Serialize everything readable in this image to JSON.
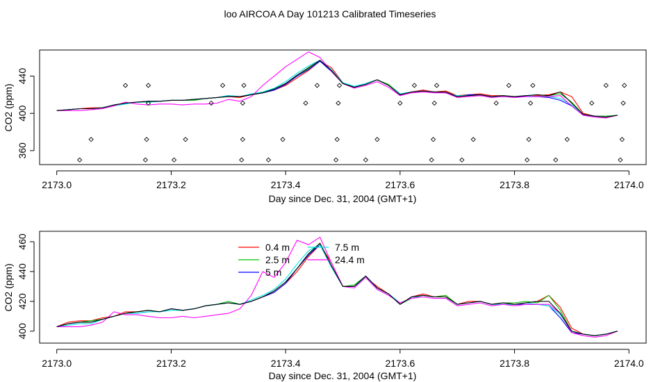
{
  "page": {
    "title": "loo AIRCOA A  Day 101213  Calibrated Timeseries"
  },
  "colors": {
    "0.4 m": "#ff0000",
    "2.5 m": "#00c000",
    "5 m": "#0000ff",
    "7.5 m": "#00e5e5",
    "24.4 m": "#ff00ff",
    "black": "#000000"
  },
  "chart_data": [
    {
      "type": "line",
      "title": "",
      "xlabel": "Day since Dec. 31, 2004 (GMT+1)",
      "ylabel": "CO2 (ppm)",
      "xlim": [
        2172.97,
        2174.03
      ],
      "ylim": [
        345,
        468
      ],
      "xticks": [
        2173.0,
        2173.2,
        2173.4,
        2173.6,
        2173.8,
        2174.0
      ],
      "xtick_labels": [
        "2173.0",
        "2173.2",
        "2173.4",
        "2173.6",
        "2173.8",
        "2174.0"
      ],
      "yticks": [
        360,
        400,
        440
      ],
      "ytick_labels": [
        "360",
        "400",
        "440"
      ],
      "grid": false,
      "legend": null,
      "x": [
        2173.0,
        2173.02,
        2173.04,
        2173.06,
        2173.08,
        2173.1,
        2173.12,
        2173.14,
        2173.16,
        2173.18,
        2173.2,
        2173.22,
        2173.24,
        2173.26,
        2173.28,
        2173.3,
        2173.32,
        2173.34,
        2173.36,
        2173.38,
        2173.4,
        2173.42,
        2173.44,
        2173.46,
        2173.48,
        2173.5,
        2173.52,
        2173.54,
        2173.56,
        2173.58,
        2173.6,
        2173.62,
        2173.64,
        2173.66,
        2173.68,
        2173.7,
        2173.72,
        2173.74,
        2173.76,
        2173.78,
        2173.8,
        2173.82,
        2173.84,
        2173.86,
        2173.88,
        2173.9,
        2173.92,
        2173.94,
        2173.96,
        2173.98
      ],
      "series": [
        {
          "name": "0.4 m",
          "color": "#ff0000",
          "values": [
            403,
            404,
            405,
            406,
            406,
            408,
            411,
            412,
            413,
            413,
            414,
            414,
            415,
            416,
            417,
            418,
            417,
            420,
            422,
            425,
            430,
            438,
            446,
            456,
            449,
            433,
            428,
            432,
            436,
            430,
            420,
            423,
            425,
            423,
            424,
            419,
            420,
            421,
            419,
            419,
            418,
            418,
            419,
            420,
            423,
            418,
            400,
            397,
            396,
            398
          ]
        },
        {
          "name": "2.5 m",
          "color": "#00c000",
          "values": [
            403,
            404,
            405,
            405,
            406,
            409,
            411,
            412,
            412,
            413,
            414,
            414,
            414,
            416,
            417,
            419,
            418,
            420,
            423,
            426,
            432,
            440,
            448,
            457,
            446,
            432,
            429,
            431,
            436,
            431,
            421,
            422,
            424,
            423,
            423,
            418,
            419,
            420,
            418,
            419,
            418,
            419,
            418,
            419,
            421,
            412,
            399,
            397,
            397,
            398
          ]
        },
        {
          "name": "5 m",
          "color": "#0000ff",
          "values": [
            403,
            404,
            405,
            405,
            406,
            409,
            411,
            412,
            413,
            413,
            414,
            414,
            415,
            416,
            417,
            419,
            418,
            420,
            422,
            425,
            431,
            440,
            447,
            456,
            445,
            432,
            428,
            432,
            436,
            430,
            420,
            423,
            424,
            423,
            422,
            418,
            420,
            420,
            418,
            418,
            418,
            418,
            418,
            417,
            414,
            408,
            398,
            397,
            396,
            398
          ]
        },
        {
          "name": "7.5 m",
          "color": "#00e5e5",
          "values": [
            403,
            404,
            405,
            405,
            406,
            408,
            410,
            412,
            412,
            413,
            414,
            414,
            415,
            416,
            417,
            419,
            418,
            421,
            423,
            427,
            434,
            443,
            451,
            457,
            447,
            433,
            429,
            432,
            436,
            430,
            421,
            423,
            424,
            423,
            422,
            419,
            419,
            420,
            418,
            418,
            418,
            419,
            418,
            418,
            416,
            409,
            399,
            397,
            396,
            398
          ]
        },
        {
          "name": "24.4 m",
          "color": "#ff00ff",
          "values": [
            403,
            403,
            403,
            404,
            405,
            408,
            412,
            410,
            409,
            410,
            410,
            409,
            410,
            410,
            411,
            415,
            413,
            418,
            430,
            440,
            450,
            458,
            466,
            460,
            445,
            432,
            427,
            430,
            434,
            428,
            419,
            422,
            423,
            422,
            422,
            417,
            418,
            419,
            417,
            418,
            417,
            418,
            418,
            418,
            419,
            408,
            398,
            396,
            395,
            398
          ]
        },
        {
          "name": "",
          "color": "#000000",
          "values": [
            403,
            404,
            405,
            405,
            406,
            409,
            411,
            412,
            413,
            413,
            414,
            414,
            415,
            416,
            417,
            418,
            418,
            420,
            422,
            426,
            432,
            441,
            449,
            457,
            446,
            432,
            428,
            431,
            436,
            430,
            420,
            423,
            424,
            423,
            423,
            418,
            419,
            420,
            418,
            419,
            418,
            419,
            420,
            419,
            423,
            411,
            399,
            397,
            396,
            398
          ]
        }
      ],
      "markers": {
        "shape": "diamond",
        "x": [
          2173.04,
          2173.06,
          2173.12,
          2173.155,
          2173.157,
          2173.16,
          2173.16,
          2173.205,
          2173.225,
          2173.27,
          2173.29,
          2173.323,
          2173.325,
          2173.325,
          2173.327,
          2173.37,
          2173.395,
          2173.435,
          2173.455,
          2173.488,
          2173.49,
          2173.492,
          2173.494,
          2173.54,
          2173.56,
          2173.6,
          2173.625,
          2173.655,
          2173.658,
          2173.66,
          2173.664,
          2173.708,
          2173.728,
          2173.768,
          2173.79,
          2173.822,
          2173.825,
          2173.828,
          2173.832,
          2173.872,
          2173.892,
          2173.935,
          2173.96,
          2173.985,
          2173.988,
          2173.99,
          2173.992
        ],
        "y": [
          350,
          372,
          430,
          350,
          372,
          411,
          430,
          350,
          372,
          411,
          430,
          350,
          372,
          411,
          430,
          350,
          372,
          411,
          430,
          350,
          372,
          411,
          430,
          350,
          372,
          411,
          430,
          350,
          372,
          411,
          430,
          350,
          372,
          411,
          430,
          350,
          372,
          411,
          430,
          350,
          372,
          411,
          430,
          350,
          372,
          411,
          430
        ]
      }
    },
    {
      "type": "line",
      "title": "",
      "xlabel": "Day since Dec. 31, 2004 (GMT+1)",
      "ylabel": "CO2 (ppm)",
      "xlim": [
        2172.97,
        2174.03
      ],
      "ylim": [
        392,
        467
      ],
      "xticks": [
        2173.0,
        2173.2,
        2173.4,
        2173.6,
        2173.8,
        2174.0
      ],
      "xtick_labels": [
        "2173.0",
        "2173.2",
        "2173.4",
        "2173.6",
        "2173.8",
        "2174.0"
      ],
      "yticks": [
        400,
        420,
        440,
        460
      ],
      "ytick_labels": [
        "400",
        "420",
        "440",
        "460"
      ],
      "grid": false,
      "legend": {
        "position": "top-center",
        "entries": [
          {
            "label": "0.4 m",
            "color": "#ff0000"
          },
          {
            "label": "2.5 m",
            "color": "#00c000"
          },
          {
            "label": "5 m",
            "color": "#0000ff"
          },
          {
            "label": "7.5 m",
            "color": "#00e5e5"
          },
          {
            "label": "24.4 m",
            "color": "#ff00ff"
          }
        ]
      },
      "x": [
        2173.0,
        2173.02,
        2173.04,
        2173.06,
        2173.08,
        2173.1,
        2173.12,
        2173.14,
        2173.16,
        2173.18,
        2173.2,
        2173.22,
        2173.24,
        2173.26,
        2173.28,
        2173.3,
        2173.32,
        2173.34,
        2173.36,
        2173.38,
        2173.4,
        2173.42,
        2173.44,
        2173.46,
        2173.48,
        2173.5,
        2173.52,
        2173.54,
        2173.56,
        2173.58,
        2173.6,
        2173.62,
        2173.64,
        2173.66,
        2173.68,
        2173.7,
        2173.72,
        2173.74,
        2173.76,
        2173.78,
        2173.8,
        2173.82,
        2173.84,
        2173.86,
        2173.88,
        2173.9,
        2173.92,
        2173.94,
        2173.96,
        2173.98
      ],
      "series": [
        {
          "name": "0.4 m",
          "color": "#ff0000",
          "values": [
            403,
            406,
            407,
            407,
            409,
            410,
            413,
            413,
            414,
            413,
            415,
            414,
            415,
            417,
            418,
            419,
            418,
            420,
            423,
            426,
            432,
            440,
            450,
            458,
            446,
            430,
            430,
            436,
            430,
            425,
            418,
            423,
            425,
            423,
            424,
            418,
            420,
            420,
            418,
            419,
            418,
            419,
            420,
            424,
            416,
            402,
            398,
            397,
            398,
            400
          ]
        },
        {
          "name": "2.5 m",
          "color": "#00c000",
          "values": [
            403,
            405,
            406,
            407,
            408,
            410,
            412,
            413,
            414,
            413,
            415,
            414,
            415,
            417,
            418,
            420,
            418,
            420,
            423,
            427,
            433,
            442,
            451,
            459,
            444,
            430,
            431,
            437,
            429,
            425,
            418,
            422,
            424,
            423,
            424,
            418,
            419,
            420,
            418,
            419,
            419,
            420,
            419,
            424,
            414,
            400,
            398,
            397,
            398,
            400
          ]
        },
        {
          "name": "5 m",
          "color": "#0000ff",
          "values": [
            403,
            405,
            406,
            406,
            408,
            410,
            412,
            412,
            413,
            413,
            415,
            414,
            415,
            417,
            418,
            419,
            418,
            420,
            423,
            426,
            432,
            442,
            451,
            458,
            443,
            430,
            430,
            437,
            429,
            425,
            418,
            423,
            424,
            423,
            423,
            418,
            419,
            420,
            418,
            418,
            418,
            418,
            418,
            417,
            409,
            399,
            398,
            397,
            398,
            400
          ]
        },
        {
          "name": "7.5 m",
          "color": "#00e5e5",
          "values": [
            403,
            404,
            405,
            405,
            408,
            410,
            412,
            412,
            413,
            413,
            414,
            414,
            415,
            417,
            418,
            419,
            418,
            421,
            424,
            428,
            435,
            445,
            454,
            458,
            443,
            430,
            430,
            436,
            429,
            425,
            419,
            422,
            424,
            423,
            423,
            418,
            419,
            420,
            418,
            418,
            418,
            419,
            418,
            417,
            411,
            400,
            398,
            397,
            398,
            400
          ]
        },
        {
          "name": "24.4 m",
          "color": "#ff00ff",
          "values": [
            403,
            403,
            403,
            404,
            406,
            413,
            411,
            411,
            410,
            409,
            409,
            410,
            409,
            410,
            411,
            412,
            415,
            424,
            440,
            436,
            446,
            461,
            458,
            463,
            446,
            430,
            429,
            436,
            428,
            424,
            419,
            422,
            423,
            422,
            422,
            417,
            418,
            419,
            417,
            418,
            417,
            418,
            418,
            418,
            412,
            399,
            397,
            396,
            397,
            400
          ]
        },
        {
          "name": "",
          "color": "#000000",
          "values": [
            403,
            405,
            406,
            406,
            408,
            410,
            412,
            413,
            414,
            413,
            415,
            414,
            415,
            417,
            418,
            419,
            418,
            420,
            423,
            427,
            433,
            442,
            452,
            459,
            444,
            430,
            430,
            437,
            429,
            425,
            418,
            423,
            424,
            423,
            423,
            418,
            419,
            420,
            418,
            419,
            418,
            419,
            420,
            420,
            412,
            400,
            398,
            397,
            398,
            400
          ]
        }
      ]
    }
  ]
}
